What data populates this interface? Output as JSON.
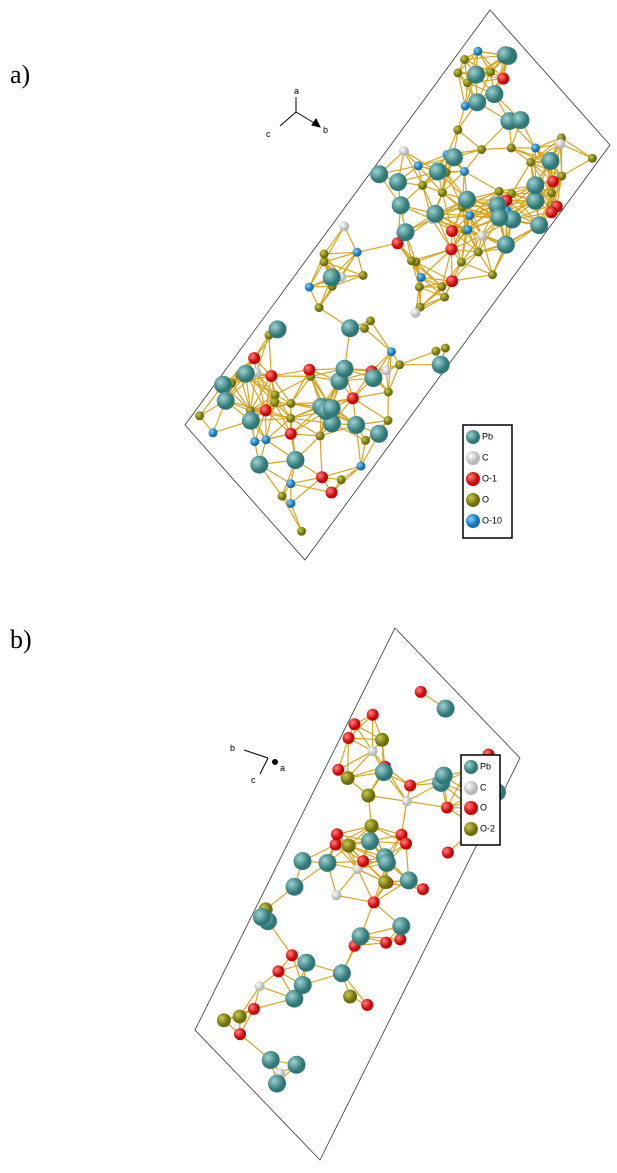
{
  "panels": [
    {
      "label": "a)",
      "axes": {
        "a": "a",
        "b": "b",
        "c": "c"
      },
      "legend": [
        "Pb",
        "C",
        "O-1",
        "O",
        "O-10"
      ]
    },
    {
      "label": "b)",
      "axes": {
        "a": "a",
        "b": "b",
        "c": "c"
      },
      "legend": [
        "Pb",
        "C",
        "O",
        "O-2"
      ]
    }
  ]
}
